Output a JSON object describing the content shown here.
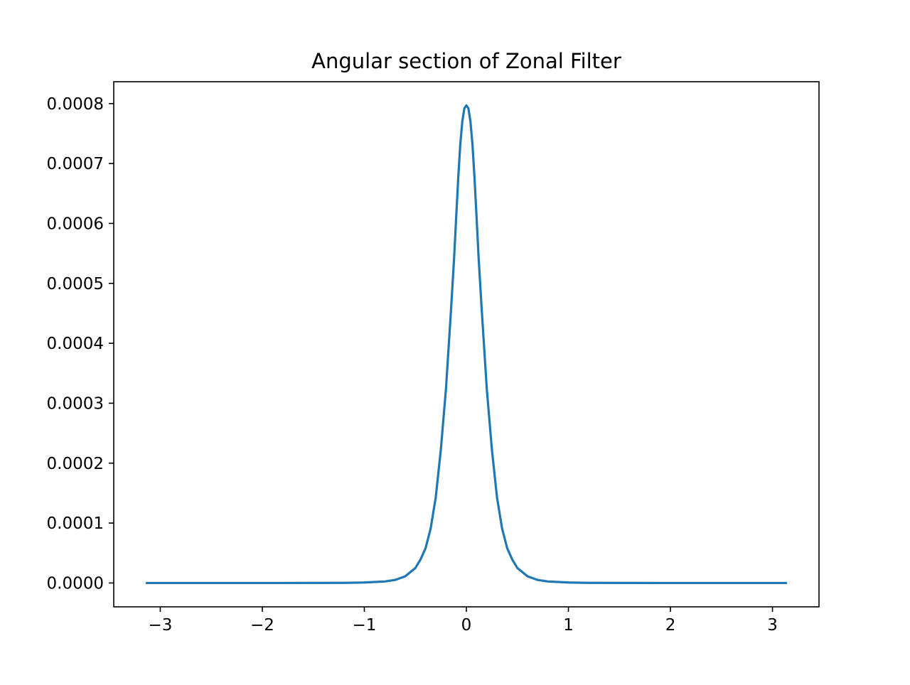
{
  "chart_data": {
    "type": "line",
    "title": "Angular section of Zonal Filter",
    "xlabel": "",
    "ylabel": "",
    "xlim": [
      -3.4558,
      3.4558
    ],
    "ylim": [
      -3.98e-05,
      0.0008365
    ],
    "grid": false,
    "legend": "none",
    "x_ticks": [
      -3,
      -2,
      -1,
      0,
      1,
      2,
      3
    ],
    "x_tick_labels": [
      "−3",
      "−2",
      "−1",
      "0",
      "1",
      "2",
      "3"
    ],
    "y_ticks": [
      0.0,
      0.0001,
      0.0002,
      0.0003,
      0.0004,
      0.0005,
      0.0006,
      0.0007,
      0.0008
    ],
    "y_tick_labels": [
      "0.0000",
      "0.0001",
      "0.0002",
      "0.0003",
      "0.0004",
      "0.0005",
      "0.0006",
      "0.0007",
      "0.0008"
    ],
    "series": [
      {
        "color": "#1f77b4",
        "x": [
          -3.1416,
          -2.0,
          -1.2,
          -1.0,
          -0.8,
          -0.7,
          -0.6,
          -0.5,
          -0.45,
          -0.4,
          -0.35,
          -0.3,
          -0.25,
          -0.2,
          -0.15,
          -0.12,
          -0.1,
          -0.08,
          -0.06,
          -0.04,
          -0.02,
          0.0,
          0.02,
          0.04,
          0.06,
          0.08,
          0.1,
          0.12,
          0.15,
          0.2,
          0.25,
          0.3,
          0.35,
          0.4,
          0.45,
          0.5,
          0.6,
          0.7,
          0.8,
          1.0,
          1.2,
          2.0,
          3.1416
        ],
        "y": [
          0.0,
          0.0,
          2e-07,
          8e-07,
          2.5e-06,
          5e-06,
          1.1e-05,
          2.5e-05,
          3.9e-05,
          5.8e-05,
          9.1e-05,
          0.000143,
          0.000223,
          0.000324,
          0.000457,
          0.000543,
          0.00061,
          0.000675,
          0.000731,
          0.00077,
          0.000792,
          0.000797,
          0.000792,
          0.00077,
          0.000731,
          0.000675,
          0.00061,
          0.000543,
          0.000457,
          0.000324,
          0.000223,
          0.000143,
          9.1e-05,
          5.8e-05,
          3.9e-05,
          2.5e-05,
          1.1e-05,
          5e-06,
          2.5e-06,
          8e-07,
          2e-07,
          0.0,
          0.0
        ]
      }
    ]
  }
}
